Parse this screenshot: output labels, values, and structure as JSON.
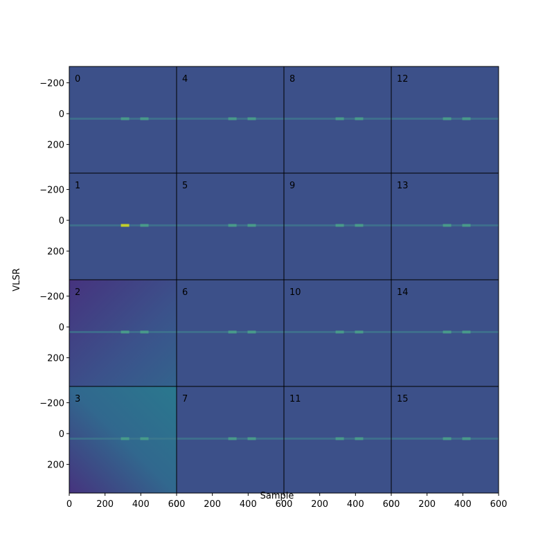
{
  "chart_data": {
    "type": "heatmap-grid",
    "xlabel": "Sample",
    "ylabel": "VLSR",
    "xlim": [
      0,
      600
    ],
    "ylim": [
      386,
      -306
    ],
    "xticks": [
      0,
      200,
      400,
      600
    ],
    "yticks": [
      {
        "value": -200,
        "label": "−200"
      },
      0,
      200
    ],
    "panels": [
      "0",
      "1",
      "2",
      "3",
      "4",
      "5",
      "6",
      "7",
      "8",
      "9",
      "10",
      "11",
      "12",
      "13",
      "14",
      "15"
    ]
  }
}
